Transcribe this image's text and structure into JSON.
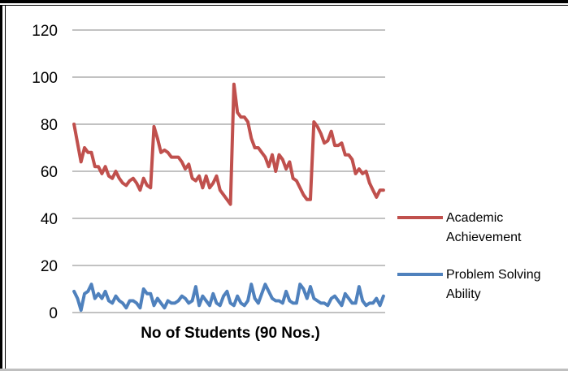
{
  "chart_data": {
    "type": "line",
    "xlabel": "No of Students (90 Nos.)",
    "ylabel": "",
    "ylim": [
      0,
      120
    ],
    "yticks": [
      0,
      20,
      40,
      60,
      80,
      100,
      120
    ],
    "grid": true,
    "legend_position": "right",
    "x": [
      1,
      2,
      3,
      4,
      5,
      6,
      7,
      8,
      9,
      10,
      11,
      12,
      13,
      14,
      15,
      16,
      17,
      18,
      19,
      20,
      21,
      22,
      23,
      24,
      25,
      26,
      27,
      28,
      29,
      30,
      31,
      32,
      33,
      34,
      35,
      36,
      37,
      38,
      39,
      40,
      41,
      42,
      43,
      44,
      45,
      46,
      47,
      48,
      49,
      50,
      51,
      52,
      53,
      54,
      55,
      56,
      57,
      58,
      59,
      60,
      61,
      62,
      63,
      64,
      65,
      66,
      67,
      68,
      69,
      70,
      71,
      72,
      73,
      74,
      75,
      76,
      77,
      78,
      79,
      80,
      81,
      82,
      83,
      84,
      85,
      86,
      87,
      88,
      89,
      90
    ],
    "series": [
      {
        "name": "Academic Achievement",
        "color": "#c0504d",
        "values": [
          80,
          72,
          64,
          70,
          68,
          68,
          62,
          62,
          59,
          62,
          58,
          57,
          60,
          57,
          55,
          54,
          56,
          57,
          55,
          52,
          57,
          54,
          53,
          79,
          74,
          68,
          69,
          68,
          66,
          66,
          66,
          64,
          61,
          63,
          57,
          56,
          58,
          53,
          58,
          53,
          55,
          58,
          52,
          50,
          48,
          46,
          97,
          85,
          83,
          83,
          81,
          74,
          70,
          70,
          68,
          66,
          62,
          67,
          60,
          67,
          65,
          61,
          64,
          57,
          56,
          53,
          50,
          48,
          48,
          81,
          79,
          76,
          72,
          73,
          77,
          71,
          71,
          72,
          67,
          67,
          65,
          59,
          61,
          59,
          60,
          55,
          52,
          49,
          52,
          52
        ]
      },
      {
        "name": "Problem Solving Ability",
        "color": "#4f81bd",
        "values": [
          9,
          6,
          1,
          8,
          9,
          12,
          6,
          8,
          6,
          9,
          5,
          4,
          7,
          5,
          4,
          2,
          5,
          5,
          4,
          2,
          10,
          8,
          8,
          3,
          6,
          4,
          2,
          5,
          4,
          4,
          5,
          7,
          6,
          4,
          5,
          11,
          3,
          7,
          5,
          3,
          8,
          4,
          3,
          7,
          9,
          4,
          3,
          7,
          4,
          3,
          5,
          12,
          6,
          4,
          8,
          12,
          9,
          6,
          5,
          5,
          4,
          9,
          5,
          4,
          4,
          12,
          10,
          6,
          11,
          6,
          5,
          4,
          4,
          3,
          6,
          7,
          5,
          3,
          8,
          6,
          4,
          4,
          11,
          5,
          3,
          4,
          4,
          6,
          3,
          7
        ]
      }
    ]
  }
}
